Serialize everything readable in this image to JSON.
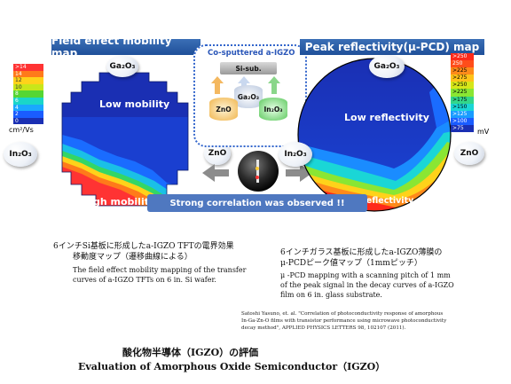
{
  "left_panel": {
    "title": "Field effect mobility map",
    "legend": [
      ">14",
      "14",
      "12",
      "10",
      "8",
      "6",
      "4",
      "2",
      "0"
    ],
    "legend_colors": [
      "#ff3333",
      "#ff7a1a",
      "#ffd21a",
      "#c9e61a",
      "#55d633",
      "#1ad6c9",
      "#1aa8ff",
      "#1a5cff",
      "#1a2fb3"
    ],
    "unit": "cm²/Vs",
    "top_badge": "Ga₂O₃",
    "left_badge": "In₂O₃",
    "right_badge": "ZnO",
    "low_label": "Low mobility",
    "high_label": "High mobility"
  },
  "right_panel": {
    "title": "Peak reflectivity(μ-PCD) map",
    "legend": [
      ">250",
      "250",
      ">225",
      ">275",
      ">250",
      ">225",
      ">175",
      ">150",
      ">125",
      ">100",
      ">75"
    ],
    "legend_colors": [
      "#ff2a1a",
      "#ff4d1a",
      "#ff8a1a",
      "#ffc21a",
      "#d6e61a",
      "#8ae633",
      "#33d68a",
      "#1ad6d6",
      "#1a9cff",
      "#1a5cff",
      "#1a2fb3"
    ],
    "unit": "mV",
    "top_badge": "Ga₂O₃",
    "left_badge": "In₂O₃",
    "right_badge": "ZnO",
    "low_label": "Low   reflectivity",
    "high_label": "High reflectivity"
  },
  "center": {
    "title": "Co-sputtered a-IGZO",
    "substrate": "Si-sub.",
    "ga_target": "Ga₂O₃",
    "zn_target": "ZnO",
    "in_target": "In₂O₃"
  },
  "correlation": "Strong correlation was observed !!",
  "left_caption": {
    "jp_line1": "6インチSi基板に形成したa-IGZO TFTの電界効果",
    "jp_line2": "移動度マップ（遷移曲線による）",
    "en_line1": "The field effect mobility mapping of the transfer",
    "en_line2": "curves of a-IGZO TFTs on 6 in. Si wafer."
  },
  "right_caption": {
    "jp_line1": "6インチガラス基板に形成したa-IGZO薄膜の",
    "jp_line2": "μ-PCDピーク値マップ（1mmピッチ）",
    "en_line1": "μ -PCD mapping with a  scanning pitch of 1 mm",
    "en_line2": "of the peak signal in the decay curves of a-IGZO",
    "en_line3": "film on 6 in. glass substrate."
  },
  "reference": {
    "line1": "Satoshi Yasuno, et. al. \"Correlation of photoconductivity response of amorphous",
    "line2": "In-Ga-Zn-O films with transistor performance using microwave photoconductivity",
    "line3": "decay method\", APPLIED PHYSICS LETTERS 98, 102107 (2011)."
  },
  "bottom": {
    "jp_title": "酸化物半導体（IGZO）の評価",
    "en_title": "Evaluation of Amorphous Oxide Semiconductor（IGZO）"
  }
}
